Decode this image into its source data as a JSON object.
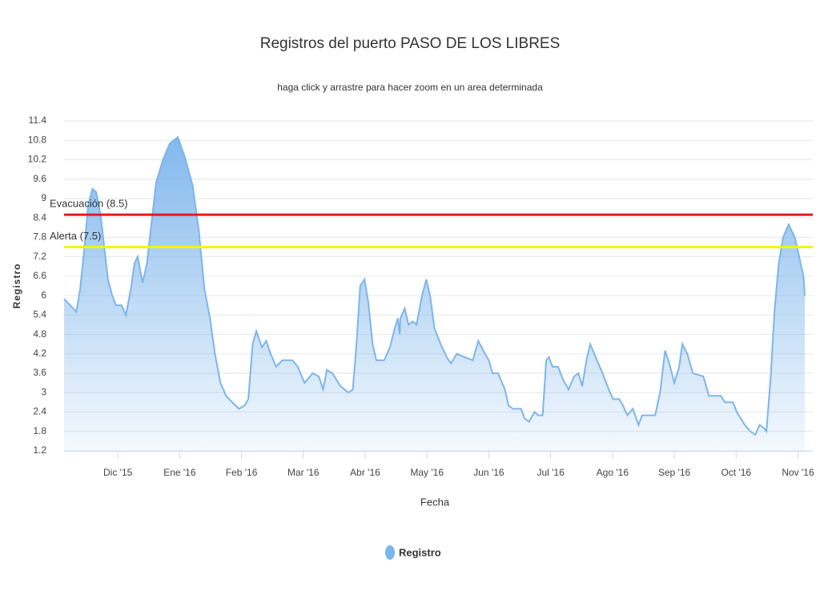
{
  "chart_data": {
    "type": "area",
    "title": "Registros del puerto PASO DE LOS LIBRES",
    "subtitle": "haga click y arrastre para hacer zoom en un area determinada",
    "x_label": "Fecha",
    "y_label": "Registro",
    "x": [
      0.13,
      0.33,
      0.39,
      0.46,
      0.52,
      0.59,
      0.65,
      0.72,
      0.78,
      0.84,
      0.91,
      0.97,
      1.06,
      1.13,
      1.21,
      1.27,
      1.32,
      1.4,
      1.47,
      1.53,
      1.62,
      1.73,
      1.84,
      1.97,
      2.08,
      2.21,
      2.31,
      2.4,
      2.49,
      2.57,
      2.66,
      2.75,
      2.85,
      2.96,
      3.05,
      3.11,
      3.18,
      3.24,
      3.33,
      3.4,
      3.47,
      3.56,
      3.66,
      3.82,
      3.91,
      4.02,
      4.15,
      4.25,
      4.32,
      4.38,
      4.47,
      4.6,
      4.73,
      4.8,
      4.86,
      4.92,
      4.99,
      5.05,
      5.12,
      5.18,
      5.31,
      5.4,
      5.48,
      5.53,
      5.56,
      5.57,
      5.64,
      5.7,
      5.77,
      5.83,
      5.92,
      5.99,
      6.05,
      6.12,
      6.22,
      6.32,
      6.39,
      6.48,
      6.61,
      6.74,
      6.83,
      6.91,
      7.0,
      7.06,
      7.15,
      7.26,
      7.32,
      7.39,
      7.52,
      7.58,
      7.65,
      7.74,
      7.8,
      7.87,
      7.93,
      7.97,
      8.03,
      8.12,
      8.2,
      8.29,
      8.38,
      8.45,
      8.51,
      8.58,
      8.64,
      8.75,
      8.84,
      8.94,
      9.01,
      9.11,
      9.17,
      9.24,
      9.33,
      9.42,
      9.48,
      9.61,
      9.69,
      9.77,
      9.85,
      9.92,
      10.0,
      10.08,
      10.13,
      10.21,
      10.3,
      10.47,
      10.56,
      10.75,
      10.82,
      10.95,
      11.01,
      11.14,
      11.23,
      11.31,
      11.38,
      11.45,
      11.49,
      11.56,
      11.62,
      11.69,
      11.76,
      11.85,
      11.95,
      12.02,
      12.09,
      12.11
    ],
    "series": [
      {
        "name": "Registro",
        "color": "#7cb5ec",
        "values": [
          5.9,
          5.5,
          6.2,
          7.5,
          8.8,
          9.3,
          9.2,
          8.5,
          7.5,
          6.5,
          6.0,
          5.7,
          5.7,
          5.4,
          6.2,
          7.0,
          7.2,
          6.4,
          7.0,
          8.0,
          9.5,
          10.2,
          10.7,
          10.9,
          10.3,
          9.4,
          8.0,
          6.2,
          5.3,
          4.2,
          3.3,
          2.9,
          2.7,
          2.5,
          2.6,
          2.8,
          4.5,
          4.9,
          4.4,
          4.6,
          4.2,
          3.8,
          4.0,
          4.0,
          3.8,
          3.3,
          3.6,
          3.5,
          3.1,
          3.7,
          3.6,
          3.2,
          3.0,
          3.1,
          4.5,
          6.3,
          6.5,
          5.8,
          4.5,
          4.0,
          4.0,
          4.4,
          5.0,
          5.3,
          4.8,
          5.3,
          5.6,
          5.1,
          5.2,
          5.1,
          6.0,
          6.5,
          6.0,
          5.0,
          4.5,
          4.1,
          3.9,
          4.2,
          4.1,
          4.0,
          4.6,
          4.3,
          4.0,
          3.6,
          3.6,
          3.1,
          2.6,
          2.5,
          2.5,
          2.2,
          2.1,
          2.4,
          2.3,
          2.3,
          4.0,
          4.1,
          3.8,
          3.8,
          3.4,
          3.1,
          3.5,
          3.6,
          3.2,
          4.0,
          4.5,
          4.0,
          3.6,
          3.1,
          2.8,
          2.8,
          2.6,
          2.3,
          2.5,
          2.0,
          2.3,
          2.3,
          2.3,
          3.0,
          4.3,
          3.9,
          3.3,
          3.8,
          4.5,
          4.2,
          3.6,
          3.5,
          2.9,
          2.9,
          2.7,
          2.7,
          2.4,
          2.0,
          1.8,
          1.7,
          2.0,
          1.9,
          1.8,
          3.5,
          5.5,
          7.0,
          7.8,
          8.2,
          7.8,
          7.2,
          6.6,
          6.0
        ]
      }
    ],
    "xlim": [
      0.13,
      12.24
    ],
    "xticks": [
      {
        "value": 1,
        "label": "Dic '15"
      },
      {
        "value": 2,
        "label": "Ene '16"
      },
      {
        "value": 3,
        "label": "Feb '16"
      },
      {
        "value": 4,
        "label": "Mar '16"
      },
      {
        "value": 5,
        "label": "Abr '16"
      },
      {
        "value": 6,
        "label": "May '16"
      },
      {
        "value": 7,
        "label": "Jun '16"
      },
      {
        "value": 8,
        "label": "Jul '16"
      },
      {
        "value": 9,
        "label": "Ago '16"
      },
      {
        "value": 10,
        "label": "Sep '16"
      },
      {
        "value": 11,
        "label": "Oct '16"
      },
      {
        "value": 12,
        "label": "Nov '16"
      }
    ],
    "ylim": [
      1.2,
      11.4
    ],
    "yticks": [
      1.2,
      1.8,
      2.4,
      3,
      3.6,
      4.2,
      4.8,
      5.4,
      6,
      6.6,
      7.2,
      7.8,
      8.4,
      9,
      9.6,
      10.2,
      10.8,
      11.4
    ],
    "grid": true,
    "plot_lines": [
      {
        "value": 8.5,
        "label": "Evacuación (8.5)",
        "color": "#e41a1c"
      },
      {
        "value": 7.5,
        "label": "Alerta (7.5)",
        "color": "#f5f500"
      }
    ]
  }
}
